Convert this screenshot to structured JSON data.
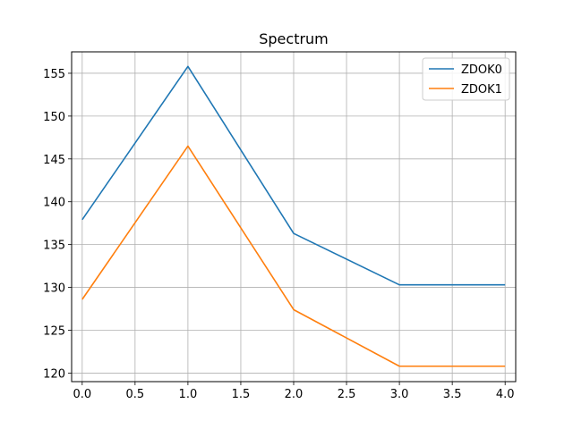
{
  "chart_data": {
    "type": "line",
    "title": "Spectrum",
    "xlabel": "",
    "ylabel": "",
    "x": [
      0,
      1,
      2,
      3,
      4
    ],
    "xlim": [
      -0.1,
      4.1
    ],
    "ylim": [
      119.0,
      157.5
    ],
    "xticks": [
      0.0,
      0.5,
      1.0,
      1.5,
      2.0,
      2.5,
      3.0,
      3.5,
      4.0
    ],
    "yticks": [
      120,
      125,
      130,
      135,
      140,
      145,
      150,
      155
    ],
    "grid": true,
    "legend_position": "top-right",
    "series": [
      {
        "name": "ZDOK0",
        "color": "#1f77b4",
        "values": [
          137.9,
          155.8,
          136.3,
          130.3,
          130.3
        ]
      },
      {
        "name": "ZDOK1",
        "color": "#ff7f0e",
        "values": [
          128.6,
          146.5,
          127.4,
          120.8,
          120.8
        ]
      }
    ]
  }
}
